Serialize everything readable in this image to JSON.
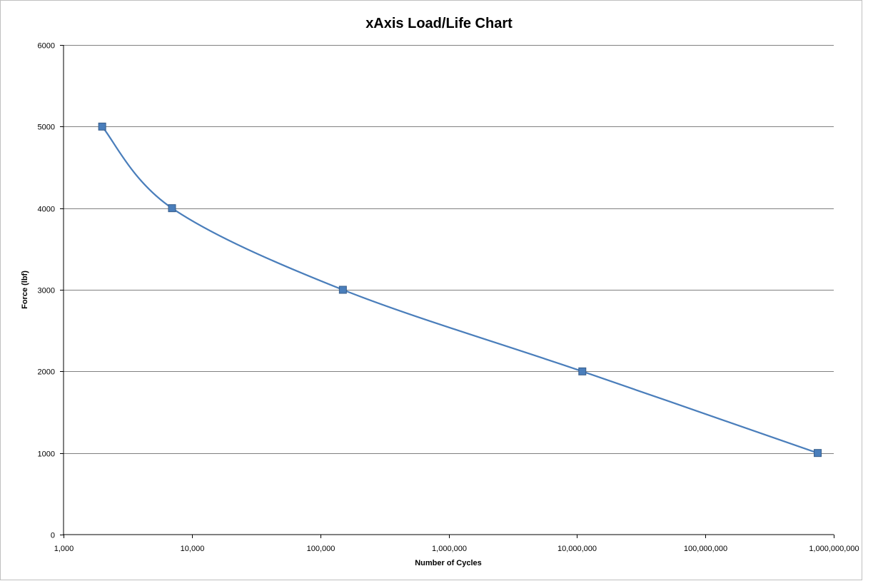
{
  "chart_data": {
    "type": "line",
    "title": "xAxis Load/Life Chart",
    "xlabel": "Number of Cycles",
    "ylabel": "Force (lbf)",
    "x_scale": "log",
    "xlim": [
      1000,
      1000000000
    ],
    "ylim": [
      0,
      6000
    ],
    "x_ticks": [
      1000,
      10000,
      100000,
      1000000,
      10000000,
      100000000,
      1000000000
    ],
    "x_tick_labels": [
      "1,000",
      "10,000",
      "100,000",
      "1,000,000",
      "10,000,000",
      "100,000,000",
      "1,000,000,000"
    ],
    "y_ticks": [
      0,
      1000,
      2000,
      3000,
      4000,
      5000,
      6000
    ],
    "y_tick_labels": [
      "0",
      "1000",
      "2000",
      "3000",
      "4000",
      "5000",
      "6000"
    ],
    "grid": "horizontal",
    "legend": "none",
    "smoothed": true,
    "series": [
      {
        "x": [
          2000,
          7000,
          150000,
          11000000,
          750000000
        ],
        "y": [
          5000,
          4000,
          3000,
          2000,
          1000
        ],
        "color": "#4a7ebb",
        "marker": "square"
      }
    ]
  },
  "colors": {
    "gridline": "#808080",
    "axis": "#000000",
    "frame": "#bfbfbf"
  }
}
